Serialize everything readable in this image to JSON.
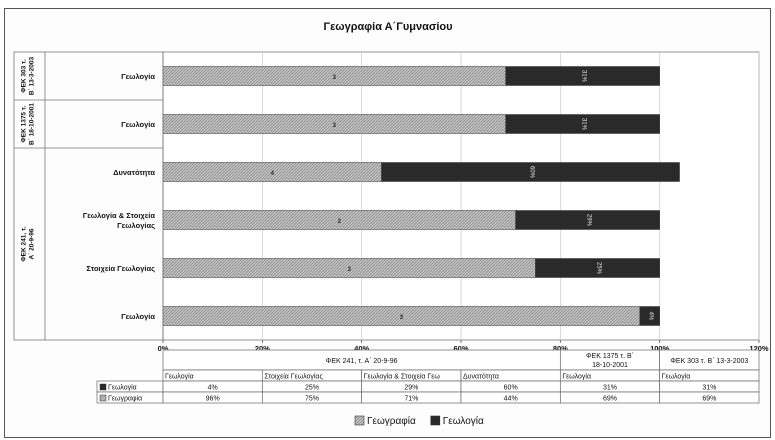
{
  "chart_data": {
    "type": "bar",
    "orientation": "horizontal",
    "stacked": true,
    "title": "Γεωγραφία Α΄Γυμνασίου",
    "categories": [
      "Γεωλογία",
      "Γεωλογία",
      "Δυνατότητα",
      "Γεωλογία & Στοιχεία Γεωλογίας",
      "Στοιχεία Γεωλογίας",
      "Γεωλογία"
    ],
    "groups": [
      {
        "label": "ΦΕΚ 303 τ. Β΄ 13-3-2003",
        "rows": [
          0
        ]
      },
      {
        "label": "ΦΕΚ 1375 τ. Β΄ 18-10-2001",
        "rows": [
          1
        ]
      },
      {
        "label": "ΦΕΚ 241, τ. Α΄ 20-9-96",
        "rows": [
          2,
          3,
          4,
          5
        ]
      }
    ],
    "series": [
      {
        "name": "Γεωγραφία",
        "color": "#bcbcbc",
        "values": [
          69,
          69,
          44,
          71,
          75,
          96
        ],
        "bar_labels": [
          "3",
          "3",
          "4",
          "2",
          "3",
          "3"
        ]
      },
      {
        "name": "Γεωλογία",
        "color": "#2a2a2a",
        "values": [
          31,
          31,
          60,
          29,
          25,
          4
        ],
        "bar_labels": [
          "31%",
          "31%",
          "60%",
          "29%",
          "25%",
          "4%"
        ]
      }
    ],
    "xlim": [
      0,
      120
    ],
    "xticks": [
      "0%",
      "20%",
      "40%",
      "60%",
      "80%",
      "100%",
      "120%"
    ],
    "legend_position": "bottom",
    "table": {
      "headers": [
        {
          "text": "ΦΕΚ 241, τ. Α΄ 20-9-96",
          "span": 4
        },
        {
          "text": "ΦΕΚ 1375 τ. Β΄ 18-10-2001",
          "span": 1
        },
        {
          "text": "ΦΕΚ 303 τ. Β΄ 13-3-2003",
          "span": 1
        }
      ],
      "columns": [
        "Γεωλογία",
        "Στοιχεία Γεωλογίας",
        "Γεωλογία & Στοιχεία Γεω",
        "Δυνατότητα",
        "Γεωλογία",
        "Γεωλογία"
      ],
      "rows": [
        {
          "name": "Γεωλογία",
          "values": [
            "4%",
            "25%",
            "29%",
            "60%",
            "31%",
            "31%"
          ]
        },
        {
          "name": "Γεωγραφία",
          "values": [
            "96%",
            "75%",
            "71%",
            "44%",
            "69%",
            "69%"
          ]
        }
      ]
    }
  }
}
